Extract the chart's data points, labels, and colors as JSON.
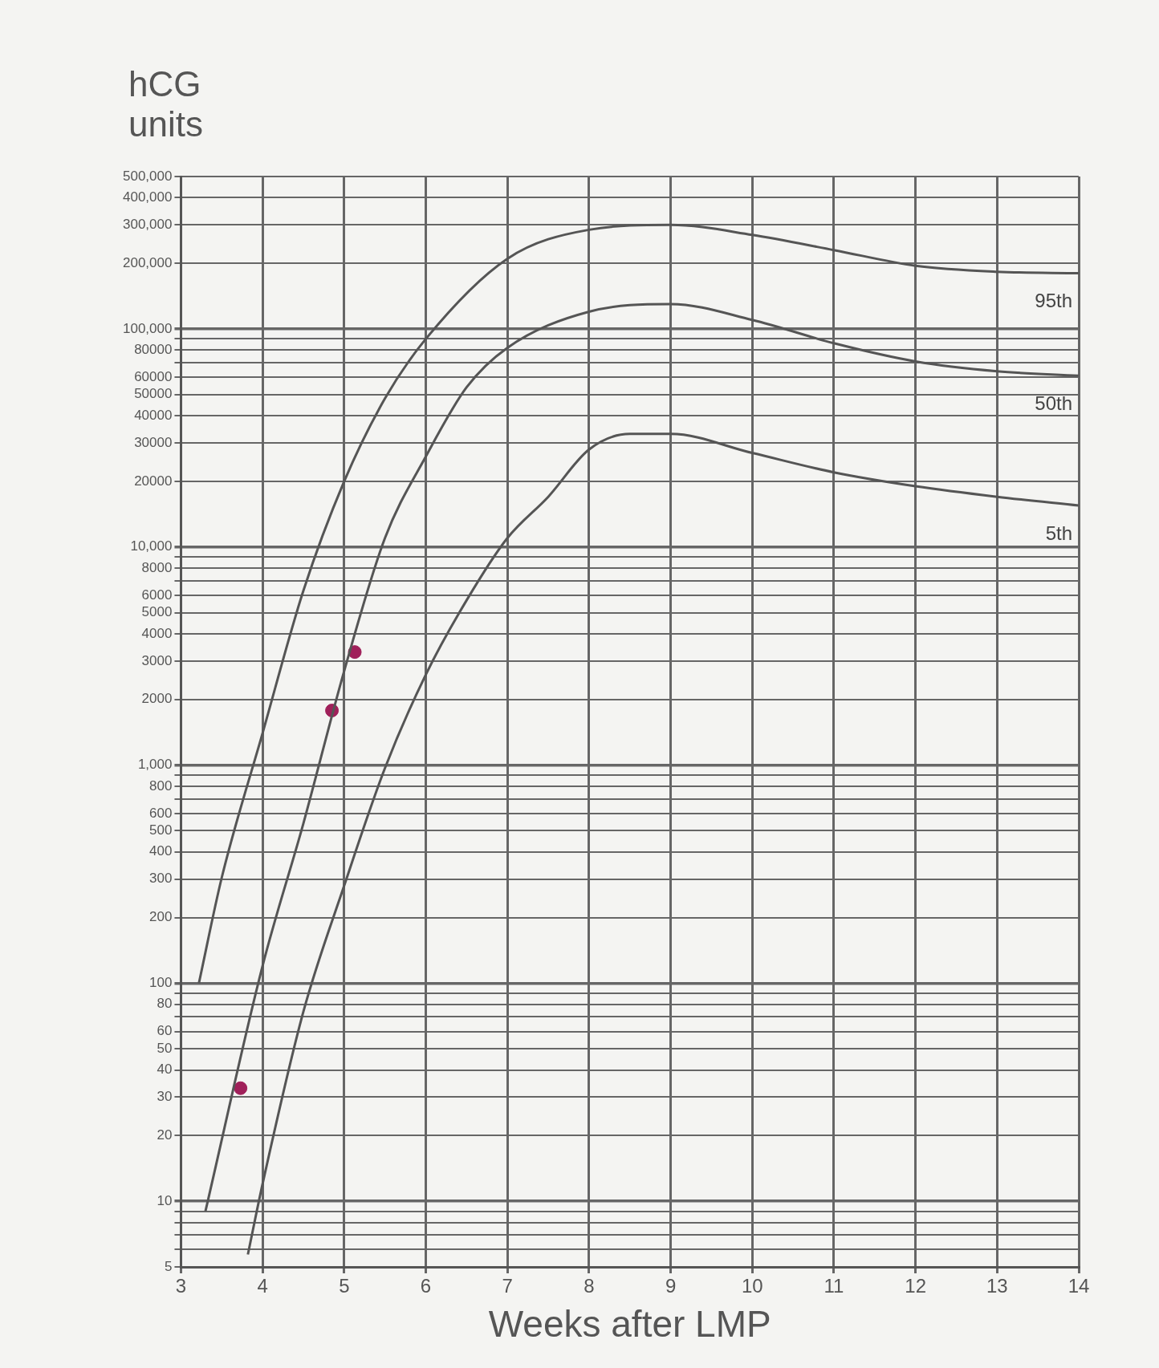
{
  "chart_data": {
    "type": "line",
    "xlabel": "Weeks after LMP",
    "ylabel": "hCG units",
    "log": "y",
    "grid": true,
    "legend": false,
    "marker": "none",
    "line_style": "solid",
    "xlim": [
      3,
      14
    ],
    "xticks": [
      3,
      4,
      5,
      6,
      7,
      8,
      9,
      10,
      11,
      12,
      13,
      14
    ],
    "ylim": [
      5,
      500000
    ],
    "yticks": [
      5,
      {
        "value": 6,
        "label": null
      },
      {
        "value": 7,
        "label": null
      },
      {
        "value": 8,
        "label": null
      },
      {
        "value": 9,
        "label": null
      },
      {
        "value": 10,
        "label": "10"
      },
      20,
      30,
      40,
      50,
      60,
      {
        "value": 70,
        "label": null
      },
      80,
      {
        "value": 90,
        "label": null
      },
      100,
      200,
      300,
      400,
      500,
      600,
      {
        "value": 700,
        "label": null
      },
      800,
      {
        "value": 900,
        "label": null
      },
      {
        "value": 1000,
        "label": "1,000"
      },
      2000,
      3000,
      4000,
      5000,
      6000,
      {
        "value": 7000,
        "label": null
      },
      8000,
      {
        "value": 9000,
        "label": null
      },
      {
        "value": 10000,
        "label": "10,000"
      },
      20000,
      30000,
      40000,
      50000,
      60000,
      {
        "value": 70000,
        "label": null
      },
      80000,
      {
        "value": 90000,
        "label": null
      },
      {
        "value": 100000,
        "label": "100,000"
      },
      {
        "value": 200000,
        "label": "200,000"
      },
      {
        "value": 300000,
        "label": "300,000"
      },
      {
        "value": 400000,
        "label": "400,000"
      },
      {
        "value": 500000,
        "label": "500,000"
      }
    ],
    "series": [
      {
        "name": "95th",
        "color": "#555555",
        "x": [
          3.22,
          3.5,
          4,
          4.5,
          5,
          5.5,
          6,
          7,
          8,
          9,
          10,
          11,
          12,
          13,
          14
        ],
        "values": [
          100,
          305,
          1400,
          6300,
          20000,
          48000,
          90000,
          210000,
          285000,
          300000,
          270000,
          230000,
          195000,
          183000,
          180000
        ]
      },
      {
        "name": "50th",
        "color": "#555555",
        "x": [
          3.3,
          4,
          4.5,
          5,
          5.5,
          6,
          6.5,
          7,
          8,
          9,
          10,
          11,
          12,
          13,
          14
        ],
        "values": [
          9,
          120,
          540,
          2700,
          11000,
          26000,
          54000,
          82000,
          120000,
          130000,
          110000,
          86000,
          71000,
          64000,
          61000
        ]
      },
      {
        "name": "5th",
        "color": "#555555",
        "x": [
          3.82,
          4,
          4.5,
          5,
          5.5,
          6,
          6.5,
          7,
          7.5,
          8,
          8.5,
          9,
          10,
          11,
          12,
          13,
          14
        ],
        "values": [
          5.7,
          12,
          74,
          280,
          970,
          2600,
          5700,
          11000,
          17000,
          28000,
          33000,
          33000,
          27000,
          22000,
          19000,
          17000,
          15500
        ]
      },
      {
        "type": "scatter",
        "color": "#a0205a",
        "marker": "circle",
        "x": [
          3.73,
          4.85,
          5.13
        ],
        "values": [
          33,
          1780,
          3300
        ]
      }
    ]
  }
}
